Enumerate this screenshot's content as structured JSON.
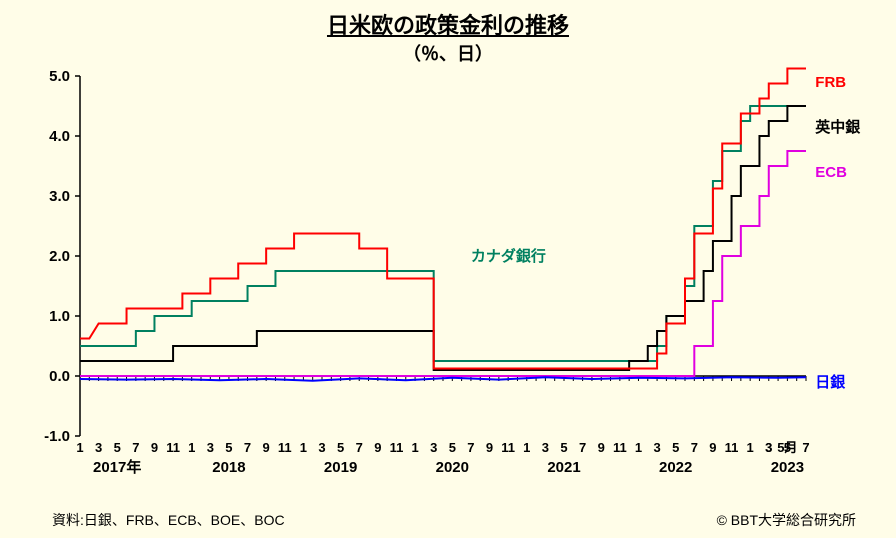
{
  "title": "日米欧の政策金利の推移",
  "subtitle": "（％、日）",
  "source_label": "資料:日銀、FRB、ECB、BOE、BOC",
  "copyright": "© BBT大学総合研究所",
  "chart": {
    "type": "line-step",
    "background_color": "#fffde8",
    "axis_color": "#000000",
    "ylim": [
      -1.0,
      5.0
    ],
    "ytick_step": 1.0,
    "yticks": [
      "-1.0",
      "0.0",
      "1.0",
      "2.0",
      "3.0",
      "4.0",
      "5.0"
    ],
    "xlim_index": [
      0,
      78
    ],
    "year_labels": [
      {
        "t": 0,
        "text": "2017年"
      },
      {
        "t": 12,
        "text": "2018"
      },
      {
        "t": 24,
        "text": "2019"
      },
      {
        "t": 36,
        "text": "2020"
      },
      {
        "t": 48,
        "text": "2021"
      },
      {
        "t": 60,
        "text": "2022"
      },
      {
        "t": 72,
        "text": "2023"
      }
    ],
    "month_pattern": [
      "1",
      "3",
      "5",
      "7",
      "9",
      "11"
    ],
    "month_last": "5月",
    "line_width": 2,
    "series": {
      "frb": {
        "name": "FRB",
        "color": "#ff0000",
        "label_color": "#ff0000",
        "label_pos": {
          "t": 79,
          "v": 4.9
        },
        "points": [
          [
            0,
            0.625
          ],
          [
            1,
            0.625
          ],
          [
            2,
            0.875
          ],
          [
            5,
            0.875
          ],
          [
            5,
            1.125
          ],
          [
            11,
            1.125
          ],
          [
            11,
            1.375
          ],
          [
            14,
            1.375
          ],
          [
            14,
            1.625
          ],
          [
            17,
            1.625
          ],
          [
            17,
            1.875
          ],
          [
            20,
            1.875
          ],
          [
            20,
            2.125
          ],
          [
            23,
            2.125
          ],
          [
            23,
            2.375
          ],
          [
            30,
            2.375
          ],
          [
            30,
            2.125
          ],
          [
            33,
            2.125
          ],
          [
            33,
            1.625
          ],
          [
            38,
            1.625
          ],
          [
            38,
            0.125
          ],
          [
            62,
            0.125
          ],
          [
            62,
            0.375
          ],
          [
            63,
            0.375
          ],
          [
            63,
            0.875
          ],
          [
            65,
            0.875
          ],
          [
            65,
            1.625
          ],
          [
            66,
            1.625
          ],
          [
            66,
            2.375
          ],
          [
            68,
            2.375
          ],
          [
            68,
            3.125
          ],
          [
            69,
            3.125
          ],
          [
            69,
            3.875
          ],
          [
            71,
            3.875
          ],
          [
            71,
            4.375
          ],
          [
            73,
            4.375
          ],
          [
            73,
            4.625
          ],
          [
            74,
            4.625
          ],
          [
            74,
            4.875
          ],
          [
            76,
            4.875
          ],
          [
            76,
            5.125
          ],
          [
            78,
            5.125
          ]
        ]
      },
      "canada": {
        "name": "カナダ銀行",
        "color": "#008060",
        "label_color": "#008060",
        "label_pos": {
          "t": 42,
          "v": 2.0
        },
        "points": [
          [
            0,
            0.5
          ],
          [
            6,
            0.5
          ],
          [
            6,
            0.75
          ],
          [
            8,
            0.75
          ],
          [
            8,
            1.0
          ],
          [
            12,
            1.0
          ],
          [
            12,
            1.25
          ],
          [
            18,
            1.25
          ],
          [
            18,
            1.5
          ],
          [
            21,
            1.5
          ],
          [
            21,
            1.75
          ],
          [
            38,
            1.75
          ],
          [
            38,
            0.25
          ],
          [
            62,
            0.25
          ],
          [
            62,
            0.5
          ],
          [
            63,
            0.5
          ],
          [
            63,
            1.0
          ],
          [
            65,
            1.0
          ],
          [
            65,
            1.5
          ],
          [
            66,
            1.5
          ],
          [
            66,
            2.5
          ],
          [
            68,
            2.5
          ],
          [
            68,
            3.25
          ],
          [
            69,
            3.25
          ],
          [
            69,
            3.75
          ],
          [
            71,
            3.75
          ],
          [
            71,
            4.25
          ],
          [
            72,
            4.25
          ],
          [
            72,
            4.5
          ],
          [
            78,
            4.5
          ]
        ]
      },
      "boe": {
        "name": "英中銀",
        "color": "#000000",
        "label_color": "#000000",
        "label_pos": {
          "t": 79,
          "v": 4.15
        },
        "points": [
          [
            0,
            0.25
          ],
          [
            10,
            0.25
          ],
          [
            10,
            0.5
          ],
          [
            19,
            0.5
          ],
          [
            19,
            0.75
          ],
          [
            38,
            0.75
          ],
          [
            38,
            0.1
          ],
          [
            59,
            0.1
          ],
          [
            59,
            0.25
          ],
          [
            61,
            0.25
          ],
          [
            61,
            0.5
          ],
          [
            62,
            0.5
          ],
          [
            62,
            0.75
          ],
          [
            63,
            0.75
          ],
          [
            63,
            1.0
          ],
          [
            65,
            1.0
          ],
          [
            65,
            1.25
          ],
          [
            67,
            1.25
          ],
          [
            67,
            1.75
          ],
          [
            68,
            1.75
          ],
          [
            68,
            2.25
          ],
          [
            70,
            2.25
          ],
          [
            70,
            3.0
          ],
          [
            71,
            3.0
          ],
          [
            71,
            3.5
          ],
          [
            73,
            3.5
          ],
          [
            73,
            4.0
          ],
          [
            74,
            4.0
          ],
          [
            74,
            4.25
          ],
          [
            76,
            4.25
          ],
          [
            76,
            4.5
          ],
          [
            78,
            4.5
          ]
        ]
      },
      "ecb": {
        "name": "ECB",
        "color": "#e000e0",
        "label_color": "#e000e0",
        "label_pos": {
          "t": 79,
          "v": 3.4
        },
        "points": [
          [
            0,
            0.0
          ],
          [
            66,
            0.0
          ],
          [
            66,
            0.5
          ],
          [
            68,
            0.5
          ],
          [
            68,
            1.25
          ],
          [
            69,
            1.25
          ],
          [
            69,
            2.0
          ],
          [
            71,
            2.0
          ],
          [
            71,
            2.5
          ],
          [
            73,
            2.5
          ],
          [
            73,
            3.0
          ],
          [
            74,
            3.0
          ],
          [
            74,
            3.5
          ],
          [
            76,
            3.5
          ],
          [
            76,
            3.75
          ],
          [
            78,
            3.75
          ]
        ]
      },
      "boj": {
        "name": "日銀",
        "color": "#0000ff",
        "label_color": "#0000ff",
        "label_pos": {
          "t": 79,
          "v": -0.1
        },
        "points": [
          [
            0,
            -0.05
          ],
          [
            5,
            -0.06
          ],
          [
            10,
            -0.05
          ],
          [
            15,
            -0.07
          ],
          [
            20,
            -0.05
          ],
          [
            25,
            -0.08
          ],
          [
            30,
            -0.04
          ],
          [
            35,
            -0.07
          ],
          [
            40,
            -0.03
          ],
          [
            45,
            -0.06
          ],
          [
            50,
            -0.02
          ],
          [
            55,
            -0.05
          ],
          [
            60,
            -0.03
          ],
          [
            65,
            -0.04
          ],
          [
            70,
            -0.02
          ],
          [
            75,
            -0.03
          ],
          [
            78,
            -0.02
          ]
        ]
      }
    }
  }
}
